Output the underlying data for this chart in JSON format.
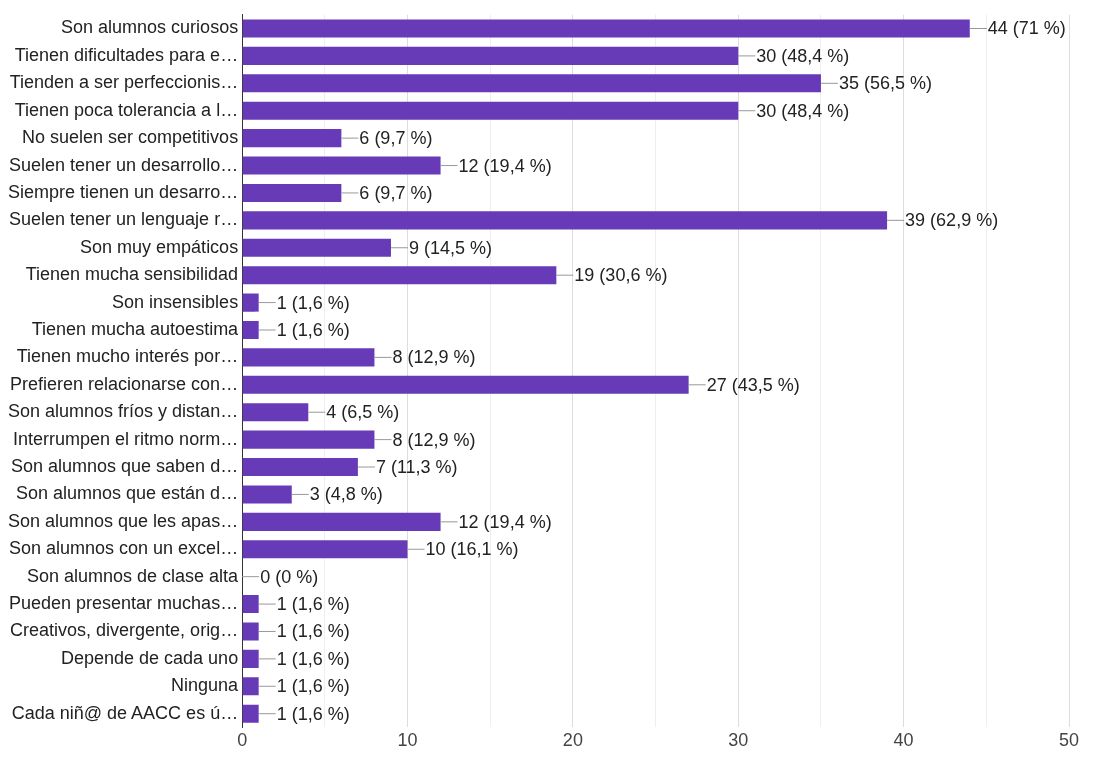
{
  "chart_data": {
    "type": "bar",
    "orientation": "horizontal",
    "categories": [
      "Son alumnos curiosos",
      "Tienen dificultades para e…",
      "Tienden a ser perfeccionis…",
      "Tienen poca tolerancia a l…",
      "No suelen ser competitivos",
      "Suelen tener un desarrollo…",
      "Siempre tienen un desarro…",
      "Suelen tener un lenguaje r…",
      "Son muy empáticos",
      "Tienen mucha sensibilidad",
      "Son insensibles",
      "Tienen mucha autoestima",
      "Tienen mucho interés por…",
      "Prefieren relacionarse con…",
      "Son alumnos fríos y distan…",
      "Interrumpen el ritmo norm…",
      "Son alumnos que saben d…",
      "Son alumnos que están d…",
      "Son alumnos que les apas…",
      "Son alumnos con un excel…",
      "Son alumnos de clase alta",
      "Pueden presentar muchas…",
      "Creativos, divergente, orig…",
      "Depende de cada uno",
      "Ninguna",
      "Cada niñ@ de AACC es ú…"
    ],
    "values": [
      44,
      30,
      35,
      30,
      6,
      12,
      6,
      39,
      9,
      19,
      1,
      1,
      8,
      27,
      4,
      8,
      7,
      3,
      12,
      10,
      0,
      1,
      1,
      1,
      1,
      1
    ],
    "value_labels": [
      "44 (71 %)",
      "30 (48,4 %)",
      "35 (56,5 %)",
      "30 (48,4 %)",
      "6 (9,7 %)",
      "12 (19,4 %)",
      "6 (9,7 %)",
      "39 (62,9 %)",
      "9 (14,5 %)",
      "19 (30,6 %)",
      "1 (1,6 %)",
      "1 (1,6 %)",
      "8 (12,9 %)",
      "27 (43,5 %)",
      "4 (6,5 %)",
      "8 (12,9 %)",
      "7 (11,3 %)",
      "3 (4,8 %)",
      "12 (19,4 %)",
      "10 (16,1 %)",
      "0 (0 %)",
      "1 (1,6 %)",
      "1 (1,6 %)",
      "1 (1,6 %)",
      "1 (1,6 %)",
      "1 (1,6 %)"
    ],
    "color": "#673ab7",
    "xlim": [
      0,
      50
    ],
    "xticks": [
      0,
      {
        "value": 5,
        "label": null
      },
      10,
      {
        "value": 15,
        "label": null
      },
      20,
      {
        "value": 25,
        "label": null
      },
      30,
      {
        "value": 35,
        "label": null
      },
      40,
      {
        "value": 45,
        "label": null
      },
      50
    ],
    "grid": "x",
    "legend": false
  }
}
